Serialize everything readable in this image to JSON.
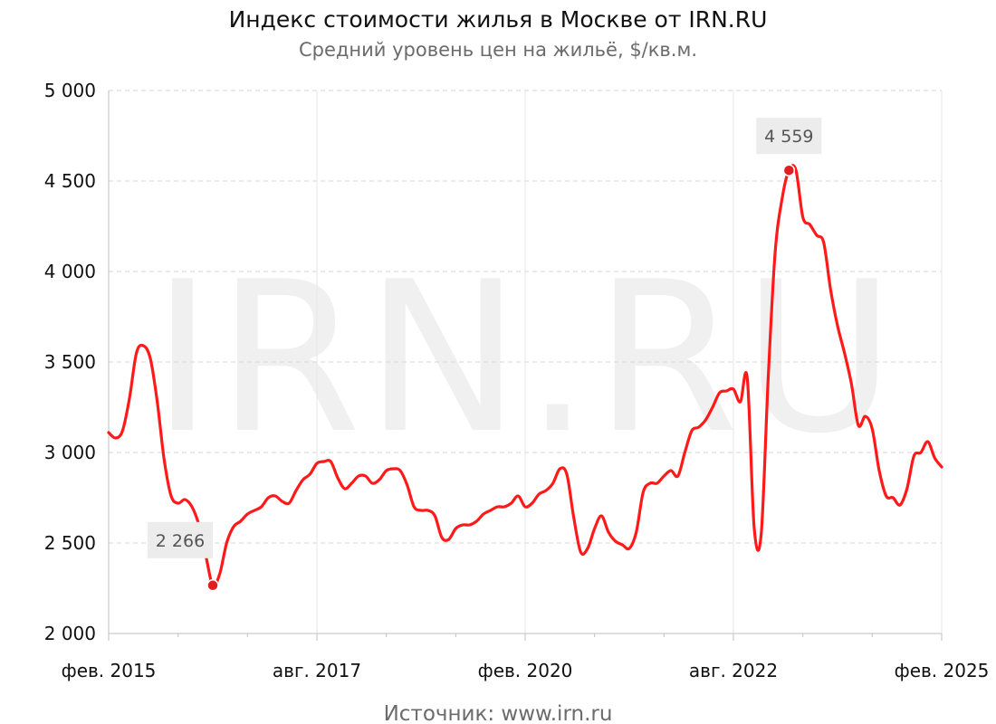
{
  "header": {
    "title": "Индекс стоимости жилья в Москве от IRN.RU",
    "subtitle": "Средний уровень цен на жильё, $/кв.м."
  },
  "watermark": "IRN.RU",
  "source": "Источник: www.irn.ru",
  "colors": {
    "line": "#ff1a1a",
    "marker": "#e02020",
    "grid": "#d6d6d6",
    "axis": "#bfbfbf",
    "label_bg": "#ececec"
  },
  "chart_data": {
    "type": "line",
    "title": "Индекс стоимости жилья в Москве от IRN.RU",
    "subtitle": "Средний уровень цен на жильё, $/кв.м.",
    "xlabel": "",
    "ylabel": "",
    "ylim": [
      2000,
      5000
    ],
    "xlim": [
      "2015-02",
      "2025-02"
    ],
    "grid": true,
    "y_ticks": [
      2000,
      2500,
      3000,
      3500,
      4000,
      4500,
      5000
    ],
    "y_tick_labels": [
      "2 000",
      "2 500",
      "3 000",
      "3 500",
      "4 000",
      "4 500",
      "5 000"
    ],
    "x_ticks": [
      "2015-02",
      "2017-08",
      "2020-02",
      "2022-08",
      "2025-02"
    ],
    "x_tick_labels": [
      "фев. 2015",
      "авг. 2017",
      "фев. 2020",
      "авг. 2022",
      "фев. 2025"
    ],
    "series": [
      {
        "points": [
          [
            "2015-02",
            3110
          ],
          [
            "2015-03",
            3080
          ],
          [
            "2015-04",
            3120
          ],
          [
            "2015-05",
            3300
          ],
          [
            "2015-06",
            3550
          ],
          [
            "2015-07",
            3590
          ],
          [
            "2015-08",
            3520
          ],
          [
            "2015-09",
            3280
          ],
          [
            "2015-10",
            2960
          ],
          [
            "2015-11",
            2760
          ],
          [
            "2015-12",
            2720
          ],
          [
            "2016-01",
            2740
          ],
          [
            "2016-02",
            2700
          ],
          [
            "2016-03",
            2600
          ],
          [
            "2016-04",
            2430
          ],
          [
            "2016-05",
            2266
          ],
          [
            "2016-06",
            2330
          ],
          [
            "2016-07",
            2500
          ],
          [
            "2016-08",
            2590
          ],
          [
            "2016-09",
            2620
          ],
          [
            "2016-10",
            2660
          ],
          [
            "2016-11",
            2680
          ],
          [
            "2016-12",
            2700
          ],
          [
            "2017-01",
            2750
          ],
          [
            "2017-02",
            2760
          ],
          [
            "2017-03",
            2730
          ],
          [
            "2017-04",
            2720
          ],
          [
            "2017-05",
            2790
          ],
          [
            "2017-06",
            2850
          ],
          [
            "2017-07",
            2880
          ],
          [
            "2017-08",
            2940
          ],
          [
            "2017-09",
            2950
          ],
          [
            "2017-10",
            2950
          ],
          [
            "2017-11",
            2860
          ],
          [
            "2017-12",
            2800
          ],
          [
            "2018-01",
            2830
          ],
          [
            "2018-02",
            2870
          ],
          [
            "2018-03",
            2870
          ],
          [
            "2018-04",
            2830
          ],
          [
            "2018-05",
            2850
          ],
          [
            "2018-06",
            2900
          ],
          [
            "2018-07",
            2910
          ],
          [
            "2018-08",
            2900
          ],
          [
            "2018-09",
            2820
          ],
          [
            "2018-10",
            2700
          ],
          [
            "2018-11",
            2680
          ],
          [
            "2018-12",
            2680
          ],
          [
            "2019-01",
            2650
          ],
          [
            "2019-02",
            2530
          ],
          [
            "2019-03",
            2520
          ],
          [
            "2019-04",
            2580
          ],
          [
            "2019-05",
            2600
          ],
          [
            "2019-06",
            2600
          ],
          [
            "2019-07",
            2620
          ],
          [
            "2019-08",
            2660
          ],
          [
            "2019-09",
            2680
          ],
          [
            "2019-10",
            2700
          ],
          [
            "2019-11",
            2700
          ],
          [
            "2019-12",
            2720
          ],
          [
            "2020-01",
            2760
          ],
          [
            "2020-02",
            2700
          ],
          [
            "2020-03",
            2720
          ],
          [
            "2020-04",
            2770
          ],
          [
            "2020-05",
            2790
          ],
          [
            "2020-06",
            2830
          ],
          [
            "2020-07",
            2910
          ],
          [
            "2020-08",
            2880
          ],
          [
            "2020-09",
            2640
          ],
          [
            "2020-10",
            2450
          ],
          [
            "2020-11",
            2470
          ],
          [
            "2020-12",
            2580
          ],
          [
            "2021-01",
            2650
          ],
          [
            "2021-02",
            2560
          ],
          [
            "2021-03",
            2510
          ],
          [
            "2021-04",
            2490
          ],
          [
            "2021-05",
            2470
          ],
          [
            "2021-06",
            2560
          ],
          [
            "2021-07",
            2780
          ],
          [
            "2021-08",
            2830
          ],
          [
            "2021-09",
            2830
          ],
          [
            "2021-10",
            2870
          ],
          [
            "2021-11",
            2900
          ],
          [
            "2021-12",
            2870
          ],
          [
            "2022-01",
            3000
          ],
          [
            "2022-02",
            3120
          ],
          [
            "2022-03",
            3140
          ],
          [
            "2022-04",
            3180
          ],
          [
            "2022-05",
            3250
          ],
          [
            "2022-06",
            3330
          ],
          [
            "2022-07",
            3340
          ],
          [
            "2022-08",
            3350
          ],
          [
            "2022-09",
            3280
          ],
          [
            "2022-10",
            3410
          ],
          [
            "2022-11",
            2580
          ],
          [
            "2022-12",
            2550
          ],
          [
            "2023-01",
            3400
          ],
          [
            "2023-02",
            4100
          ],
          [
            "2023-03",
            4400
          ],
          [
            "2023-04",
            4559
          ],
          [
            "2023-05",
            4560
          ],
          [
            "2023-06",
            4300
          ],
          [
            "2023-07",
            4260
          ],
          [
            "2023-08",
            4200
          ],
          [
            "2023-09",
            4160
          ],
          [
            "2023-10",
            3900
          ],
          [
            "2023-11",
            3700
          ],
          [
            "2023-12",
            3550
          ],
          [
            "2024-01",
            3380
          ],
          [
            "2024-02",
            3150
          ],
          [
            "2024-03",
            3200
          ],
          [
            "2024-04",
            3130
          ],
          [
            "2024-05",
            2900
          ],
          [
            "2024-06",
            2760
          ],
          [
            "2024-07",
            2750
          ],
          [
            "2024-08",
            2710
          ],
          [
            "2024-09",
            2800
          ],
          [
            "2024-10",
            2980
          ],
          [
            "2024-11",
            3000
          ],
          [
            "2024-12",
            3060
          ],
          [
            "2025-01",
            2970
          ],
          [
            "2025-02",
            2920
          ]
        ]
      }
    ],
    "annotations": [
      {
        "x": "2016-05",
        "y": 2266,
        "text": "2 266",
        "placement": "above-left"
      },
      {
        "x": "2023-04",
        "y": 4559,
        "text": "4 559",
        "placement": "above"
      }
    ]
  }
}
